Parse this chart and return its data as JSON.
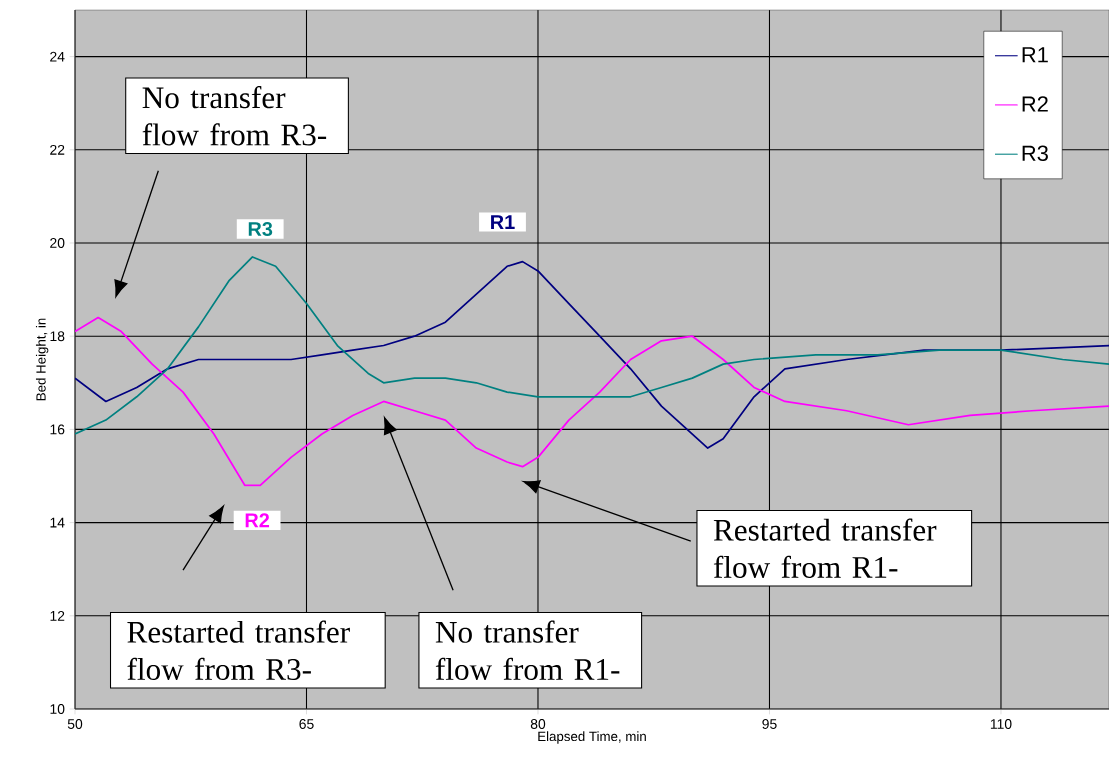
{
  "chart_data": {
    "type": "line",
    "xlabel": "Elapsed Time, min",
    "ylabel": "Bed Height, in",
    "xlim": [
      50,
      117
    ],
    "ylim": [
      10,
      25
    ],
    "xticks": [
      50,
      65,
      80,
      95,
      110
    ],
    "yticks": [
      10,
      12,
      14,
      16,
      18,
      20,
      22,
      24
    ],
    "grid": true,
    "legend": "top right",
    "marker": "none",
    "line_style": "solid",
    "series": [
      {
        "name": "R1",
        "color": "#000080",
        "x": [
          50,
          52,
          54,
          56,
          58,
          60,
          62,
          64,
          66,
          68,
          70,
          72,
          74,
          76,
          78,
          79,
          80,
          82,
          84,
          86,
          88,
          90,
          91,
          92,
          94,
          96,
          100,
          105,
          110,
          117
        ],
        "values": [
          17.1,
          16.6,
          16.9,
          17.3,
          17.5,
          17.5,
          17.5,
          17.5,
          17.6,
          17.7,
          17.8,
          18.0,
          18.3,
          18.9,
          19.5,
          19.6,
          19.4,
          18.7,
          18.0,
          17.3,
          16.5,
          15.9,
          15.6,
          15.8,
          16.7,
          17.3,
          17.5,
          17.7,
          17.7,
          17.8
        ]
      },
      {
        "name": "R2",
        "color": "#ff00ff",
        "x": [
          50,
          51.5,
          53,
          55,
          57,
          59,
          61,
          62,
          64,
          66,
          68,
          70,
          72,
          74,
          76,
          78,
          79,
          80,
          82,
          84,
          86,
          88,
          90,
          92,
          94,
          96,
          100,
          104,
          108,
          112,
          117
        ],
        "values": [
          18.1,
          18.4,
          18.1,
          17.4,
          16.8,
          15.9,
          14.8,
          14.8,
          15.4,
          15.9,
          16.3,
          16.6,
          16.4,
          16.2,
          15.6,
          15.3,
          15.2,
          15.4,
          16.2,
          16.8,
          17.5,
          17.9,
          18.0,
          17.5,
          16.9,
          16.6,
          16.4,
          16.1,
          16.3,
          16.4,
          16.5
        ]
      },
      {
        "name": "R3",
        "color": "#008080",
        "x": [
          50,
          52,
          54,
          56,
          58,
          60,
          61.5,
          63,
          65,
          67,
          69,
          70,
          72,
          74,
          76,
          78,
          80,
          82,
          84,
          86,
          88,
          90,
          92,
          94,
          98,
          102,
          106,
          110,
          114,
          117
        ],
        "values": [
          15.9,
          16.2,
          16.7,
          17.3,
          18.2,
          19.2,
          19.7,
          19.5,
          18.7,
          17.8,
          17.2,
          17.0,
          17.1,
          17.1,
          17.0,
          16.8,
          16.7,
          16.7,
          16.7,
          16.7,
          16.9,
          17.1,
          17.4,
          17.5,
          17.6,
          17.6,
          17.7,
          17.7,
          17.5,
          17.4
        ]
      }
    ],
    "annotations": [
      "No transfer flow from R3-",
      "Restarted transfer flow from R3-",
      "No transfer flow from R1-",
      "Restarted transfer flow from R1-",
      "R1",
      "R2",
      "R3"
    ]
  }
}
